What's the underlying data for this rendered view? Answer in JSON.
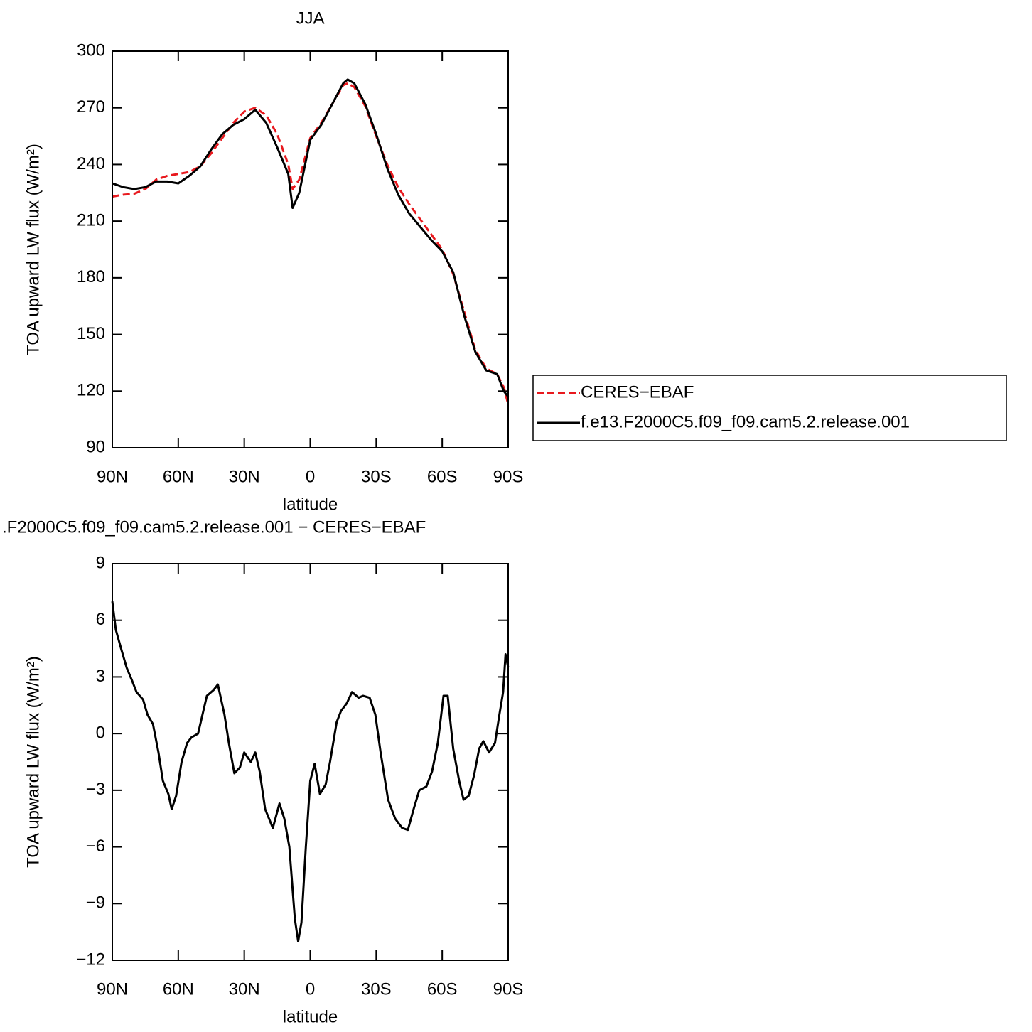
{
  "chart_data": [
    {
      "type": "line",
      "title": "JJA",
      "xlabel": "latitude",
      "ylabel": "TOA upward LW flux (W/m²)",
      "x": [
        90,
        85,
        80,
        75,
        70,
        65,
        60,
        55,
        50,
        45,
        40,
        35,
        30,
        25,
        20,
        15,
        10,
        8,
        5,
        0,
        -5,
        -10,
        -15,
        -17,
        -20,
        -25,
        -30,
        -35,
        -40,
        -45,
        -50,
        -55,
        -60,
        -65,
        -70,
        -75,
        -80,
        -85,
        -88,
        -90
      ],
      "series": [
        {
          "name": "CERES−EBAF",
          "color": "#e8191e",
          "line_style": "dashed",
          "values": [
            223,
            224,
            224.5,
            227,
            232,
            234,
            235,
            236,
            239,
            246,
            254,
            262,
            268,
            270,
            266,
            256,
            240,
            227,
            232,
            254,
            262,
            272,
            282,
            283,
            281,
            271,
            255,
            240,
            228,
            219,
            211,
            203,
            195,
            182,
            162,
            142,
            132,
            129,
            122,
            113
          ]
        },
        {
          "name": "f.e13.F2000C5.f09_f09.cam5.2.release.001",
          "color": "#000000",
          "line_style": "solid",
          "values": [
            230,
            228,
            227,
            228,
            231,
            231,
            230,
            234,
            239,
            248,
            256,
            261,
            264,
            269,
            262,
            249,
            235,
            217,
            225,
            253,
            261,
            272,
            283,
            285,
            283,
            272,
            256,
            238,
            224,
            214,
            207,
            200,
            194,
            183,
            160,
            141,
            131,
            129,
            120,
            117
          ]
        }
      ],
      "xlim": [
        90,
        -90
      ],
      "xticks": [
        {
          "value": 90,
          "label": "90N"
        },
        {
          "value": 60,
          "label": "60N"
        },
        {
          "value": 30,
          "label": "30N"
        },
        0,
        {
          "value": -30,
          "label": "30S"
        },
        {
          "value": -60,
          "label": "60S"
        },
        {
          "value": -90,
          "label": "90S"
        }
      ],
      "ylim": [
        90,
        300
      ],
      "yticks": [
        90,
        120,
        150,
        180,
        210,
        240,
        270,
        300
      ],
      "legend": "right"
    },
    {
      "type": "line",
      "title": ".F2000C5.f09_f09.cam5.2.release.001 − CERES−EBAF",
      "xlabel": "latitude",
      "ylabel": "TOA upward LW flux (W/m²)",
      "x": [
        90,
        88.4,
        86,
        83.5,
        81,
        79,
        76,
        74,
        71.5,
        69,
        67,
        64.5,
        63,
        61,
        58.5,
        56,
        54,
        51,
        49,
        47,
        44,
        42,
        39,
        37,
        34.5,
        32,
        30,
        27,
        25,
        23,
        20.5,
        17,
        14,
        11.8,
        9.5,
        7,
        5.5,
        4,
        2,
        0,
        -2,
        -4.4,
        -7,
        -9,
        -12,
        -14,
        -16.6,
        -19,
        -22,
        -24,
        -27,
        -29.6,
        -32,
        -35.4,
        -38.6,
        -41.8,
        -44.4,
        -47,
        -49.6,
        -52.8,
        -55.4,
        -58,
        -60.6,
        -62.5,
        -65,
        -67.7,
        -69.7,
        -72,
        -74.5,
        -76.8,
        -78.7,
        -81.3,
        -84,
        -86,
        -87.7,
        -88.8,
        -90
      ],
      "color": "#000000",
      "values": [
        7,
        5.5,
        4.5,
        3.5,
        2.8,
        2.2,
        1.8,
        1,
        0.5,
        -1,
        -2.5,
        -3.2,
        -4,
        -3.3,
        -1.5,
        -0.5,
        -0.2,
        0,
        1,
        2,
        2.3,
        2.6,
        1,
        -0.5,
        -2.1,
        -1.8,
        -1,
        -1.5,
        -1,
        -2,
        -4,
        -5,
        -3.7,
        -4.5,
        -6,
        -9.8,
        -11,
        -10,
        -6,
        -2.5,
        -1.6,
        -3.2,
        -2.7,
        -1.5,
        0.6,
        1.2,
        1.6,
        2.2,
        1.9,
        2,
        1.9,
        1,
        -1,
        -3.5,
        -4.5,
        -5,
        -5.1,
        -4,
        -3,
        -2.8,
        -2,
        -0.5,
        2,
        2,
        -0.8,
        -2.5,
        -3.5,
        -3.3,
        -2.2,
        -0.8,
        -0.4,
        -1,
        -0.5,
        1,
        2.2,
        4.2,
        3.5
      ],
      "xlim": [
        90,
        -90
      ],
      "xticks": [
        {
          "value": 90,
          "label": "90N"
        },
        {
          "value": 60,
          "label": "60N"
        },
        {
          "value": 30,
          "label": "30N"
        },
        0,
        {
          "value": -30,
          "label": "30S"
        },
        {
          "value": -60,
          "label": "60S"
        },
        {
          "value": -90,
          "label": "90S"
        }
      ],
      "ylim": [
        -12,
        9
      ],
      "yticks": [
        {
          "value": -12,
          "label": "−12"
        },
        {
          "value": -9,
          "label": "−9"
        },
        {
          "value": -6,
          "label": "−6"
        },
        {
          "value": -3,
          "label": "−3"
        },
        0,
        3,
        6,
        9
      ]
    }
  ]
}
